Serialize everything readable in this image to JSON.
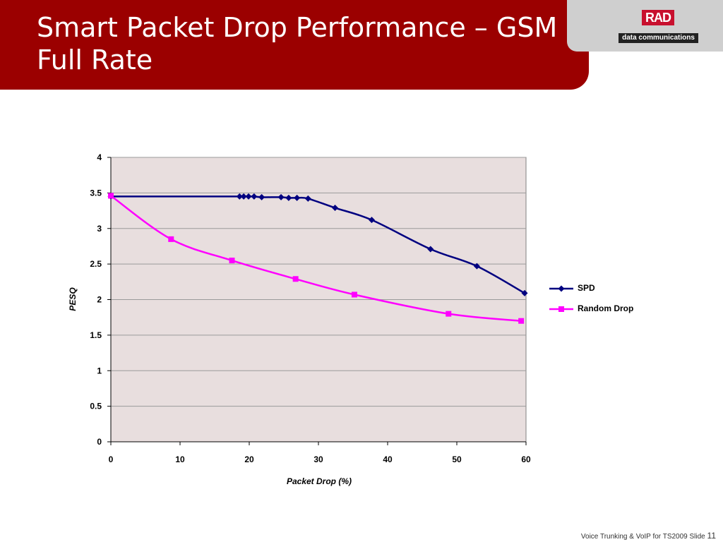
{
  "slide": {
    "title": "Smart Packet Drop Performance – GSM Full Rate",
    "logo_text": "RAD",
    "logo_subtext": "data communications",
    "footer_text": "Voice Trunking & VoIP for TS2009  Slide",
    "slide_number": "11"
  },
  "colors": {
    "title_bar": "#9b0000",
    "plot_background": "#e8dede",
    "spd": "#000080",
    "random_drop": "#ff00ff"
  },
  "chart_data": {
    "type": "line",
    "title": "",
    "xlabel": "Packet Drop   (%)",
    "ylabel": "PESQ",
    "xlim": [
      0,
      60
    ],
    "ylim": [
      0,
      4
    ],
    "xticks": [
      0,
      10,
      20,
      30,
      40,
      50,
      60
    ],
    "yticks": [
      0,
      0.5,
      1,
      1.5,
      2,
      2.5,
      3,
      3.5,
      4
    ],
    "grid": "horizontal",
    "legend_position": "right",
    "series": [
      {
        "name": "SPD",
        "marker": "diamond",
        "color": "#000080",
        "x": [
          0,
          18.6,
          19.2,
          19.9,
          20.7,
          21.8,
          24.6,
          25.7,
          26.9,
          28.5,
          32.4,
          37.7,
          46.2,
          52.9,
          59.8
        ],
        "y": [
          3.45,
          3.45,
          3.45,
          3.45,
          3.45,
          3.44,
          3.44,
          3.43,
          3.43,
          3.42,
          3.29,
          3.12,
          2.71,
          2.47,
          2.09
        ]
      },
      {
        "name": "Random Drop",
        "marker": "square",
        "color": "#ff00ff",
        "x": [
          0,
          8.7,
          17.5,
          26.7,
          35.2,
          48.8,
          59.3
        ],
        "y": [
          3.46,
          2.85,
          2.55,
          2.29,
          2.07,
          1.8,
          1.7
        ]
      }
    ]
  }
}
